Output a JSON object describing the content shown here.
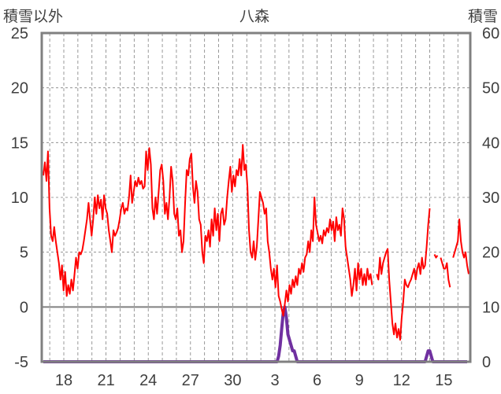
{
  "chart_data": {
    "type": "line",
    "title": "八森",
    "left_axis_label": "積雪以外",
    "right_axis_label": "積雪",
    "left_ylim": [
      -5,
      25
    ],
    "left_ticks": [
      "25",
      "20",
      "15",
      "10",
      "5",
      "0",
      "-5"
    ],
    "right_ylim": [
      0,
      60
    ],
    "right_ticks": [
      "60",
      "50",
      "40",
      "30",
      "20",
      "10",
      "0"
    ],
    "x_tick_labels": [
      "18",
      "21",
      "24",
      "27",
      "30",
      "3",
      "6",
      "9",
      "12",
      "15"
    ],
    "grid": true,
    "colors": {
      "temperature": "#ff0000",
      "snow": "#7030a0",
      "frame": "#808080",
      "grid": "#808080"
    },
    "series": [
      {
        "axis": "left",
        "values": [
          12.0,
          13.2,
          11.5,
          14.2,
          9.0,
          6.5,
          6.0,
          7.3,
          6.0,
          5.0,
          4.0,
          2.5,
          3.8,
          1.5,
          3.2,
          1.0,
          2.0,
          1.2,
          2.5,
          1.5,
          3.0,
          4.5,
          3.5,
          5.0,
          4.8,
          5.2,
          6.0,
          7.0,
          8.0,
          9.5,
          8.0,
          6.5,
          8.0,
          10.0,
          8.5,
          10.2,
          9.0,
          9.8,
          8.0,
          10.2,
          9.0,
          8.5,
          7.0,
          6.0,
          5.0,
          7.0,
          6.5,
          6.8,
          7.2,
          8.0,
          9.0,
          9.5,
          8.5,
          9.0,
          8.8,
          10.0,
          12.0,
          9.5,
          10.5,
          11.5,
          11.0,
          11.8,
          11.2,
          11.5,
          10.8,
          11.0,
          14.2,
          12.5,
          14.5,
          13.0,
          9.0,
          8.0,
          10.0,
          8.5,
          10.5,
          12.5,
          13.0,
          11.5,
          8.5,
          9.5,
          8.0,
          10.0,
          12.8,
          11.5,
          8.5,
          8.0,
          9.0,
          6.5,
          7.0,
          5.0,
          6.0,
          9.5,
          12.5,
          12.0,
          13.5,
          14.0,
          11.0,
          9.5,
          11.5,
          10.5,
          8.0,
          7.5,
          5.0,
          4.0,
          6.5,
          6.0,
          7.0,
          5.5,
          8.0,
          6.5,
          9.0,
          7.0,
          8.5,
          6.0,
          8.5,
          9.0,
          7.5,
          8.0,
          10.0,
          11.5,
          12.8,
          10.5,
          12.0,
          11.0,
          12.5,
          12.0,
          13.5,
          12.0,
          14.8,
          12.5,
          13.0,
          11.0,
          7.0,
          5.0,
          4.5,
          6.0,
          4.3,
          5.5,
          8.0,
          10.5,
          10.0,
          9.5,
          8.5,
          9.0,
          6.0,
          5.0,
          3.5,
          2.5,
          3.5,
          1.8,
          3.8,
          1.0,
          0.5,
          -0.2,
          -0.8,
          0.3,
          1.5,
          0.5,
          2.0,
          1.2,
          2.5,
          1.8,
          2.8,
          2.0,
          3.5,
          3.0,
          4.0,
          3.2,
          4.5,
          4.8,
          6.0,
          5.0,
          7.0,
          6.0,
          10.0,
          7.5,
          6.8,
          6.0,
          6.5,
          5.8,
          7.0,
          6.5,
          7.2,
          6.8,
          8.0,
          7.0,
          7.8,
          6.0,
          8.2,
          7.0,
          7.5,
          6.5,
          9.0,
          8.0,
          5.5,
          4.5,
          3.5,
          2.5,
          1.0,
          2.0,
          3.5,
          1.5,
          4.0,
          2.5,
          3.5,
          2.0,
          3.0,
          2.0,
          3.5,
          2.5,
          3.0,
          2.0,
          null,
          null,
          3.0,
          2.5,
          4.5,
          3.0,
          4.0,
          4.5,
          5.0,
          5.3,
          2.5,
          0.5,
          -1.5,
          -2.5,
          -1.5,
          -2.8,
          -2.0,
          -3.0,
          -1.0,
          0.5,
          2.5,
          2.0,
          1.8,
          2.2,
          2.5,
          3.0,
          3.5,
          2.5,
          3.5,
          4.0,
          3.0,
          4.5,
          3.5,
          3.8,
          5.5,
          7.5,
          9.0,
          null,
          null,
          4.8,
          4.5,
          4.7,
          null,
          4.5,
          4.0,
          3.5,
          3.5,
          4.0,
          2.5,
          1.8,
          null,
          4.5,
          5.0,
          5.5,
          6.0,
          8.0,
          6.0,
          5.0,
          4.5,
          5.0,
          3.8,
          3.0
        ]
      },
      {
        "axis": "right",
        "values": [
          0,
          0,
          0,
          0,
          0,
          0,
          0,
          0,
          0,
          0,
          0,
          0,
          0,
          0,
          0,
          0,
          0,
          0,
          0,
          0,
          0,
          0,
          0,
          0,
          0,
          0,
          0,
          0,
          0,
          0,
          0,
          0,
          0,
          0,
          0,
          0,
          0,
          0,
          0,
          0,
          0,
          0,
          0,
          0,
          0,
          0,
          0,
          0,
          0,
          0,
          0,
          0,
          0,
          0,
          0,
          0,
          0,
          0,
          0,
          0,
          0,
          0,
          0,
          0,
          0,
          0,
          0,
          0,
          0,
          0,
          0,
          0,
          0,
          0,
          0,
          0,
          0,
          0,
          0,
          0,
          0,
          0,
          0,
          0,
          0,
          0,
          0,
          0,
          0,
          0,
          0,
          0,
          0,
          0,
          0,
          0,
          0,
          0,
          0,
          0,
          0,
          0,
          0,
          0,
          0,
          0,
          0,
          0,
          0,
          0,
          0,
          0,
          0,
          0,
          0,
          0,
          0,
          0,
          0,
          0,
          0,
          0,
          0,
          0,
          0,
          0,
          0,
          0,
          0,
          0,
          0,
          0,
          0,
          0,
          0,
          0,
          0,
          0,
          0,
          0,
          0,
          0,
          0,
          0,
          0,
          0,
          0,
          0,
          0,
          0,
          0,
          0,
          0,
          0,
          0,
          0,
          0,
          0,
          0,
          0,
          0,
          0,
          0,
          0,
          0,
          0,
          0,
          0,
          0,
          0,
          0,
          0,
          0,
          0,
          0,
          0,
          0,
          0,
          0,
          0,
          0,
          0,
          0,
          0,
          0,
          0,
          0,
          0,
          0,
          0,
          0,
          0,
          0,
          0,
          0,
          0,
          0,
          0,
          0,
          0,
          0,
          0,
          0,
          0,
          0,
          0,
          0,
          0,
          0,
          0,
          0,
          0,
          0,
          0,
          0,
          0,
          0,
          0,
          0,
          0,
          0,
          0,
          0,
          0,
          0,
          0,
          0,
          0,
          0,
          0,
          0,
          0,
          0,
          0,
          0,
          0,
          0,
          0,
          0,
          0,
          0,
          0,
          0,
          0,
          0,
          0,
          0,
          0,
          0,
          0,
          0,
          0,
          0,
          0,
          0,
          0,
          0,
          0,
          0,
          0,
          0,
          0,
          0,
          0,
          0,
          0,
          0,
          0,
          0,
          0,
          0,
          0,
          0
        ]
      }
    ],
    "snow_events": [
      {
        "start_index": 150,
        "values": [
          0,
          1,
          3,
          6,
          9,
          10,
          8,
          5,
          4,
          3,
          2,
          2,
          1,
          0
        ]
      },
      {
        "start_index": 245,
        "values": [
          0,
          1,
          2,
          2,
          1,
          0
        ]
      }
    ]
  }
}
